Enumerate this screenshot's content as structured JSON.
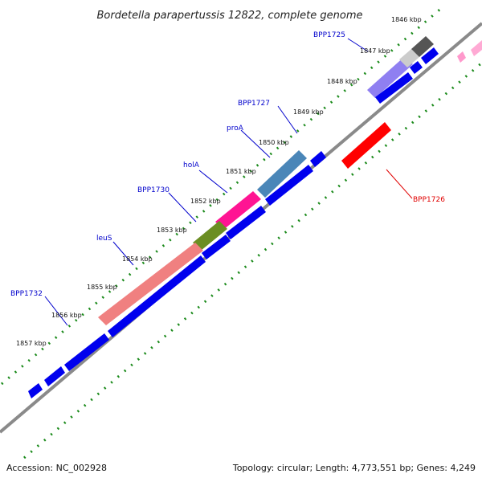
{
  "title": "Bordetella parapertussis 12822, complete genome",
  "accession": "Accession: NC_002928",
  "topology": "Topology: circular; Length: 4,773,551 bp; Genes: 4,249",
  "kbp_labels": [
    "1846 kbp",
    "1847 kbp",
    "1848 kbp",
    "1849 kbp",
    "1850 kbp",
    "1851 kbp",
    "1852 kbp",
    "1853 kbp",
    "1854 kbp",
    "1855 kbp",
    "1856 kbp",
    "1857 kbp"
  ],
  "genes": {
    "bpp1725": "BPP1725",
    "bpp1727": "BPP1727",
    "proa": "proA",
    "hola": "holA",
    "bpp1730": "BPP1730",
    "leus": "leuS",
    "bpp1732": "BPP1732",
    "bpp1726": "BPP1726"
  },
  "colors": {
    "backbone": "#777777",
    "tick": "#1a8a1a",
    "cds_blue": "#0000ee",
    "bpp1725_band": "#6a5acd",
    "bpp1727_band": "#4682b4",
    "hola_band": "#ff1493",
    "bpp1730_band": "#6b8e23",
    "leus_band": "#f08080",
    "bpp1726_red": "#ff0000",
    "pink_edge": "#ff99cc"
  }
}
